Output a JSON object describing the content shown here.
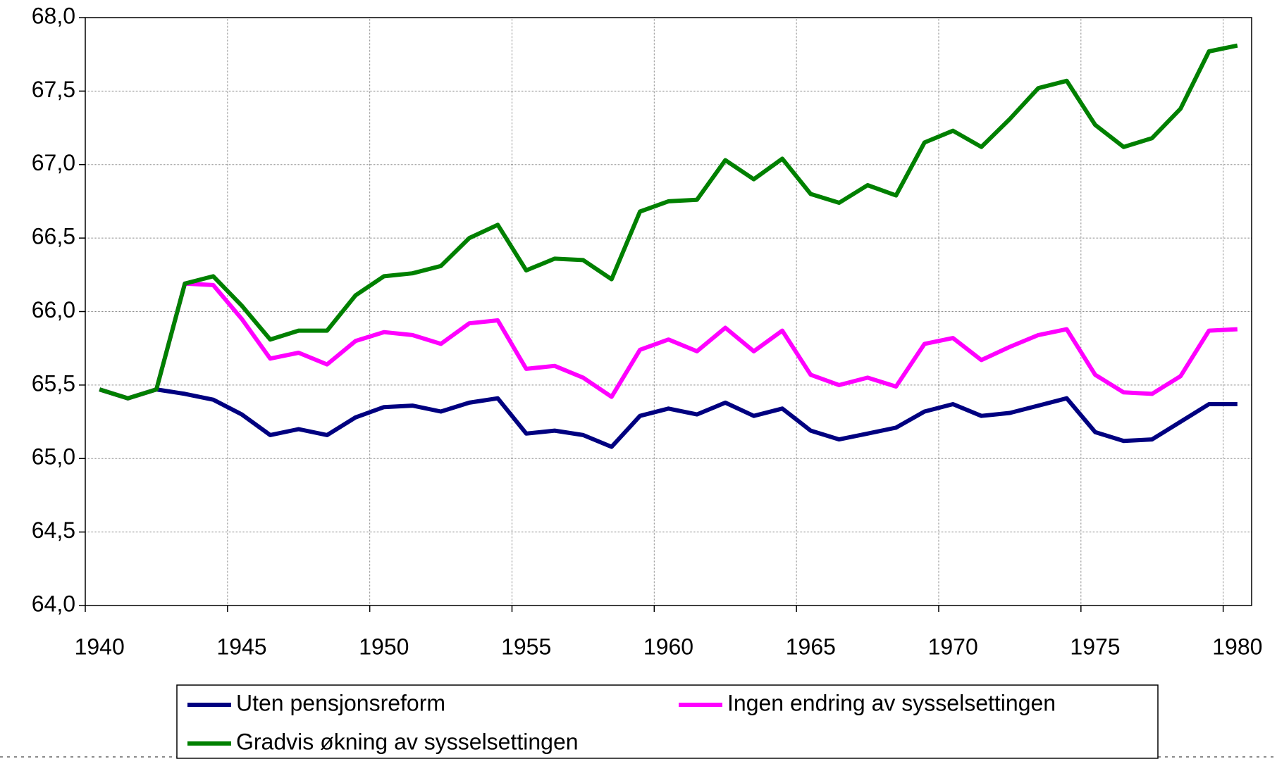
{
  "chart_data": {
    "type": "line",
    "categories": [
      "1940",
      null,
      null,
      null,
      null,
      "1945",
      null,
      null,
      null,
      null,
      "1950",
      null,
      null,
      null,
      null,
      "1955",
      null,
      null,
      null,
      null,
      "1960",
      null,
      null,
      null,
      null,
      "1965",
      null,
      null,
      null,
      null,
      "1970",
      null,
      null,
      null,
      null,
      "1975",
      null,
      null,
      null,
      null,
      "1980"
    ],
    "series": [
      {
        "name": "Uten pensjonsreform",
        "color": "#000080",
        "values": [
          65.47,
          65.41,
          65.47,
          65.44,
          65.4,
          65.3,
          65.16,
          65.2,
          65.16,
          65.28,
          65.35,
          65.36,
          65.32,
          65.38,
          65.41,
          65.17,
          65.19,
          65.16,
          65.08,
          65.29,
          65.34,
          65.3,
          65.38,
          65.29,
          65.34,
          65.19,
          65.13,
          65.17,
          65.21,
          65.32,
          65.37,
          65.29,
          65.31,
          65.36,
          65.41,
          65.18,
          65.12,
          65.13,
          65.25,
          65.37,
          65.37
        ]
      },
      {
        "name": "Ingen endring av sysselsettingen",
        "color": "#ff00ff",
        "values": [
          65.47,
          65.41,
          65.47,
          66.19,
          66.18,
          65.95,
          65.68,
          65.72,
          65.64,
          65.8,
          65.86,
          65.84,
          65.78,
          65.92,
          65.94,
          65.61,
          65.63,
          65.55,
          65.42,
          65.74,
          65.81,
          65.73,
          65.89,
          65.73,
          65.87,
          65.57,
          65.5,
          65.55,
          65.49,
          65.78,
          65.82,
          65.67,
          65.76,
          65.84,
          65.88,
          65.57,
          65.45,
          65.44,
          65.56,
          65.87,
          65.88
        ]
      },
      {
        "name": "Gradvis økning av sysselsettingen",
        "color": "#008000",
        "values": [
          65.47,
          65.41,
          65.47,
          66.19,
          66.24,
          66.04,
          65.81,
          65.87,
          65.87,
          66.11,
          66.24,
          66.26,
          66.31,
          66.5,
          66.59,
          66.28,
          66.36,
          66.35,
          66.22,
          66.68,
          66.75,
          66.76,
          67.03,
          66.9,
          67.04,
          66.8,
          66.74,
          66.86,
          66.79,
          67.15,
          67.23,
          67.12,
          67.31,
          67.52,
          67.57,
          67.27,
          67.12,
          67.18,
          67.38,
          67.77,
          67.81
        ]
      }
    ],
    "ylim": [
      64,
      68
    ],
    "yticks": [
      {
        "value": 64,
        "label": "64,0"
      },
      {
        "value": 64.5,
        "label": "64,5"
      },
      {
        "value": 65,
        "label": "65,0"
      },
      {
        "value": 65.5,
        "label": "65,5"
      },
      {
        "value": 66,
        "label": "66,0"
      },
      {
        "value": 66.5,
        "label": "66,5"
      },
      {
        "value": 67,
        "label": "67,0"
      },
      {
        "value": 67.5,
        "label": "67,5"
      },
      {
        "value": 68,
        "label": "68,0"
      }
    ],
    "grid": true,
    "legend": "bottom"
  }
}
